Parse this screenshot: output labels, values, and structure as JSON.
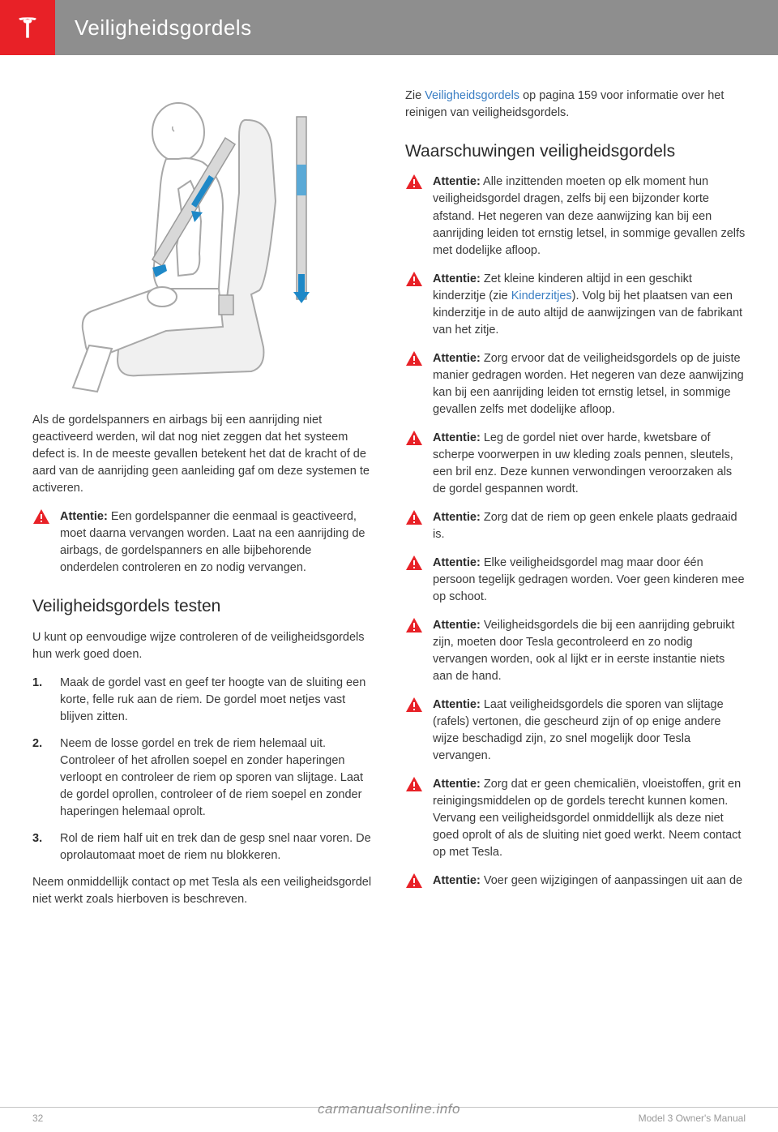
{
  "header": {
    "title": "Veiligheidsgordels"
  },
  "colors": {
    "accent": "#e82127",
    "header_bg": "#8e8e8e",
    "link": "#3b7fc4",
    "text": "#3a3a3a"
  },
  "left_col": {
    "intro_para": "Als de gordelspanners en airbags bij een aanrijding niet geactiveerd werden, wil dat nog niet zeggen dat het systeem defect is. In de meeste gevallen betekent het dat de kracht of de aard van de aanrijding geen aanleiding gaf om deze systemen te activeren.",
    "warning1": {
      "label": "Attentie:",
      "text": " Een gordelspanner die eenmaal is geactiveerd, moet daarna vervangen worden. Laat na een aanrijding de airbags, de gordelspanners en alle bijbehorende onderdelen controleren en zo nodig vervangen."
    },
    "section_h": "Veiligheidsgordels testen",
    "test_intro": "U kunt op eenvoudige wijze controleren of de veiligheidsgordels hun werk goed doen.",
    "steps": [
      "Maak de gordel vast en geef ter hoogte van de sluiting een korte, felle ruk aan de riem. De gordel moet netjes vast blijven zitten.",
      "Neem de losse gordel en trek de riem helemaal uit. Controleer of het afrollen soepel en zonder haperingen verloopt en controleer de riem op sporen van slijtage. Laat de gordel oprollen, controleer of de riem soepel en zonder haperingen helemaal oprolt.",
      "Rol de riem half uit en trek dan de gesp snel naar voren. De oprolautomaat moet de riem nu blokkeren."
    ],
    "test_outro": "Neem onmiddellijk contact op met Tesla als een veiligheidsgordel niet werkt zoals hierboven is beschreven."
  },
  "right_col": {
    "top_text_pre": "Zie ",
    "top_link": "Veiligheidsgordels",
    "top_text_post": " op pagina 159 voor informatie over het reinigen van veiligheidsgordels.",
    "section_h": "Waarschuwingen veiligheidsgordels",
    "warnings": [
      {
        "label": "Attentie:",
        "pre": " Alle inzittenden moeten op elk moment hun veiligheidsgordel dragen, zelfs bij een bijzonder korte afstand. Het negeren van deze aanwijzing kan bij een aanrijding leiden tot ernstig letsel, in sommige gevallen zelfs met dodelijke afloop.",
        "link": "",
        "post": ""
      },
      {
        "label": "Attentie:",
        "pre": " Zet kleine kinderen altijd in een geschikt kinderzitje (zie ",
        "link": "Kinderzitjes",
        "post": "). Volg bij het plaatsen van een kinderzitje in de auto altijd de aanwijzingen van de fabrikant van het zitje."
      },
      {
        "label": "Attentie:",
        "pre": " Zorg ervoor dat de veiligheidsgordels op de juiste manier gedragen worden. Het negeren van deze aanwijzing kan bij een aanrijding leiden tot ernstig letsel, in sommige gevallen zelfs met dodelijke afloop.",
        "link": "",
        "post": ""
      },
      {
        "label": "Attentie:",
        "pre": " Leg de gordel niet over harde, kwetsbare of scherpe voorwerpen in uw kleding zoals pennen, sleutels, een bril enz. Deze kunnen verwondingen veroorzaken als de gordel gespannen wordt.",
        "link": "",
        "post": ""
      },
      {
        "label": "Attentie:",
        "pre": " Zorg dat de riem op geen enkele plaats gedraaid is.",
        "link": "",
        "post": ""
      },
      {
        "label": "Attentie:",
        "pre": " Elke veiligheidsgordel mag maar door één persoon tegelijk gedragen worden. Voer geen kinderen mee op schoot.",
        "link": "",
        "post": ""
      },
      {
        "label": "Attentie:",
        "pre": " Veiligheidsgordels die bij een aanrijding gebruikt zijn, moeten door Tesla gecontroleerd en zo nodig vervangen worden, ook al lijkt er in eerste instantie niets aan de hand.",
        "link": "",
        "post": ""
      },
      {
        "label": "Attentie:",
        "pre": " Laat veiligheidsgordels die sporen van slijtage (rafels) vertonen, die gescheurd zijn of op enige andere wijze beschadigd zijn, zo snel mogelijk door Tesla vervangen.",
        "link": "",
        "post": ""
      },
      {
        "label": "Attentie:",
        "pre": " Zorg dat er geen chemicaliën, vloeistoffen, grit en reinigingsmiddelen op de gordels terecht kunnen komen. Vervang een veiligheidsgordel onmiddellijk als deze niet goed oprolt of als de sluiting niet goed werkt. Neem contact op met Tesla.",
        "link": "",
        "post": ""
      },
      {
        "label": "Attentie:",
        "pre": " Voer geen wijzigingen of aanpassingen uit aan de",
        "link": "",
        "post": ""
      }
    ]
  },
  "footer": {
    "page_num": "32",
    "doc_title": "Model 3 Owner's Manual",
    "watermark": "carmanualsonline.info"
  }
}
